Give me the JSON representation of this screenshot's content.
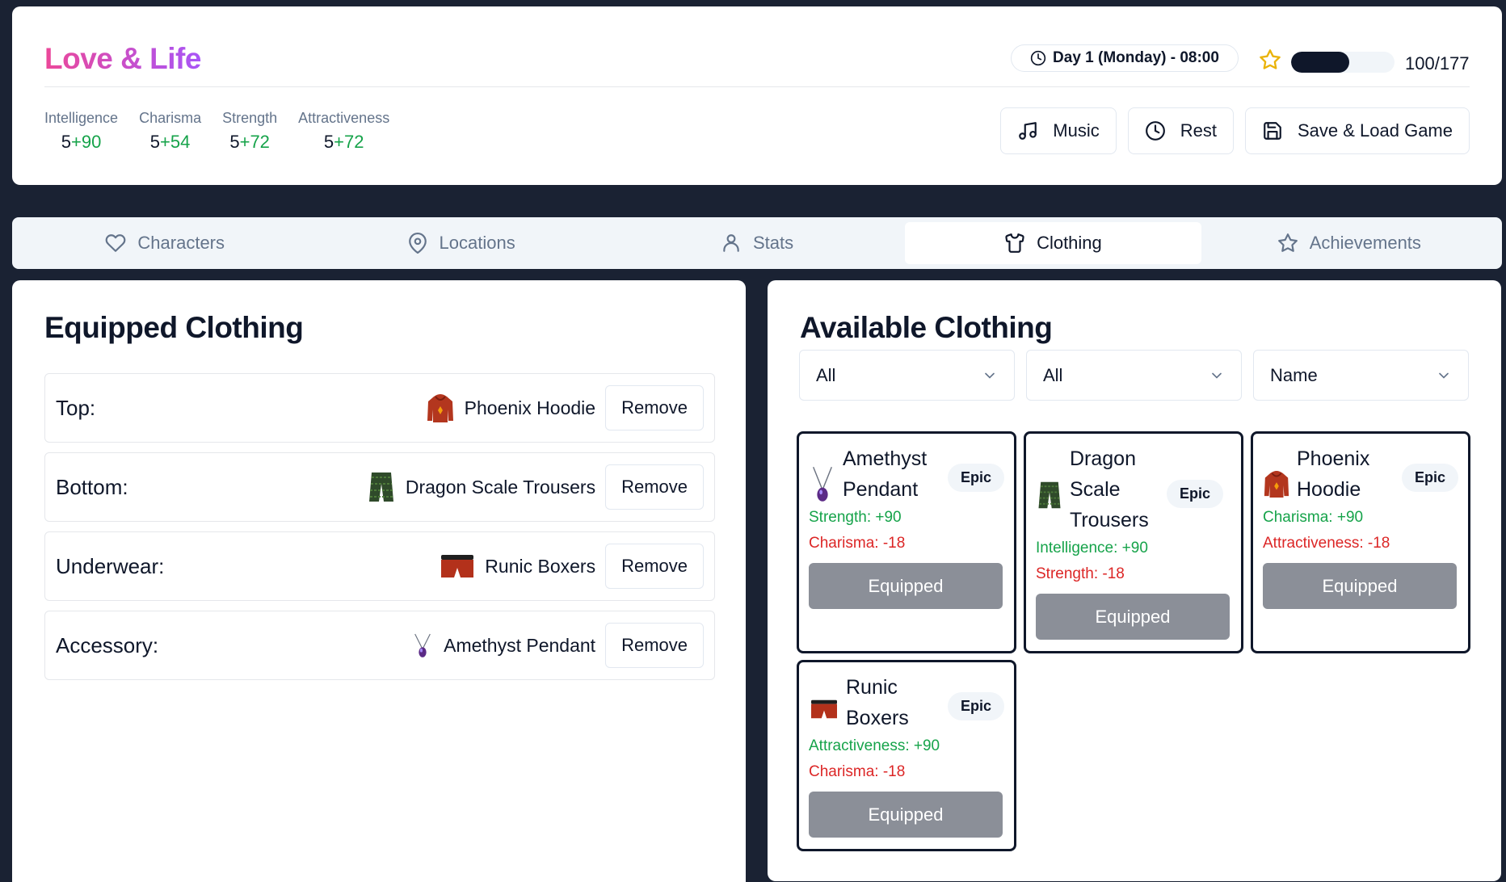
{
  "app": {
    "title": "Love & Life"
  },
  "time": {
    "label": "Day 1 (Monday) - 08:00"
  },
  "energy": {
    "text": "100/177",
    "fraction": 0.565
  },
  "stats": [
    {
      "label": "Intelligence",
      "base": "5",
      "bonus": "+90"
    },
    {
      "label": "Charisma",
      "base": "5",
      "bonus": "+54"
    },
    {
      "label": "Strength",
      "base": "5",
      "bonus": "+72"
    },
    {
      "label": "Attractiveness",
      "base": "5",
      "bonus": "+72"
    }
  ],
  "actions": {
    "music": "Music",
    "rest": "Rest",
    "save_load": "Save & Load Game"
  },
  "tabs": [
    {
      "label": "Characters",
      "icon": "heart-icon"
    },
    {
      "label": "Locations",
      "icon": "map-pin-icon"
    },
    {
      "label": "Stats",
      "icon": "user-icon"
    },
    {
      "label": "Clothing",
      "icon": "shirt-icon",
      "active": true
    },
    {
      "label": "Achievements",
      "icon": "star-icon"
    }
  ],
  "equipped": {
    "title": "Equipped Clothing",
    "remove_label": "Remove",
    "slots": [
      {
        "label": "Top:",
        "item": "Phoenix Hoodie",
        "icon": "hoodie-icon"
      },
      {
        "label": "Bottom:",
        "item": "Dragon Scale Trousers",
        "icon": "trousers-icon"
      },
      {
        "label": "Underwear:",
        "item": "Runic Boxers",
        "icon": "boxers-icon"
      },
      {
        "label": "Accessory:",
        "item": "Amethyst Pendant",
        "icon": "pendant-icon"
      }
    ]
  },
  "available": {
    "title": "Available Clothing",
    "filters": [
      "All",
      "All",
      "Name"
    ],
    "items": [
      {
        "name": "Amethyst Pendant",
        "rarity": "Epic",
        "icon": "pendant-icon",
        "mods": [
          {
            "text": "Strength: +90",
            "type": "pos"
          },
          {
            "text": "Charisma: -18",
            "type": "neg"
          }
        ],
        "button": "Equipped"
      },
      {
        "name": "Dragon Scale Trousers",
        "rarity": "Epic",
        "icon": "trousers-icon",
        "mods": [
          {
            "text": "Intelligence: +90",
            "type": "pos"
          },
          {
            "text": "Strength: -18",
            "type": "neg"
          }
        ],
        "button": "Equipped"
      },
      {
        "name": "Phoenix Hoodie",
        "rarity": "Epic",
        "icon": "hoodie-icon",
        "mods": [
          {
            "text": "Charisma: +90",
            "type": "pos"
          },
          {
            "text": "Attractiveness: -18",
            "type": "neg"
          }
        ],
        "button": "Equipped"
      },
      {
        "name": "Runic Boxers",
        "rarity": "Epic",
        "icon": "boxers-icon",
        "mods": [
          {
            "text": "Attractiveness: +90",
            "type": "pos"
          },
          {
            "text": "Charisma: -18",
            "type": "neg"
          }
        ],
        "button": "Equipped"
      }
    ]
  },
  "colors": {
    "accent_start": "#ec4899",
    "accent_end": "#a855f7",
    "positive": "#16a34a",
    "negative": "#dc2626",
    "background": "#1a2233"
  }
}
